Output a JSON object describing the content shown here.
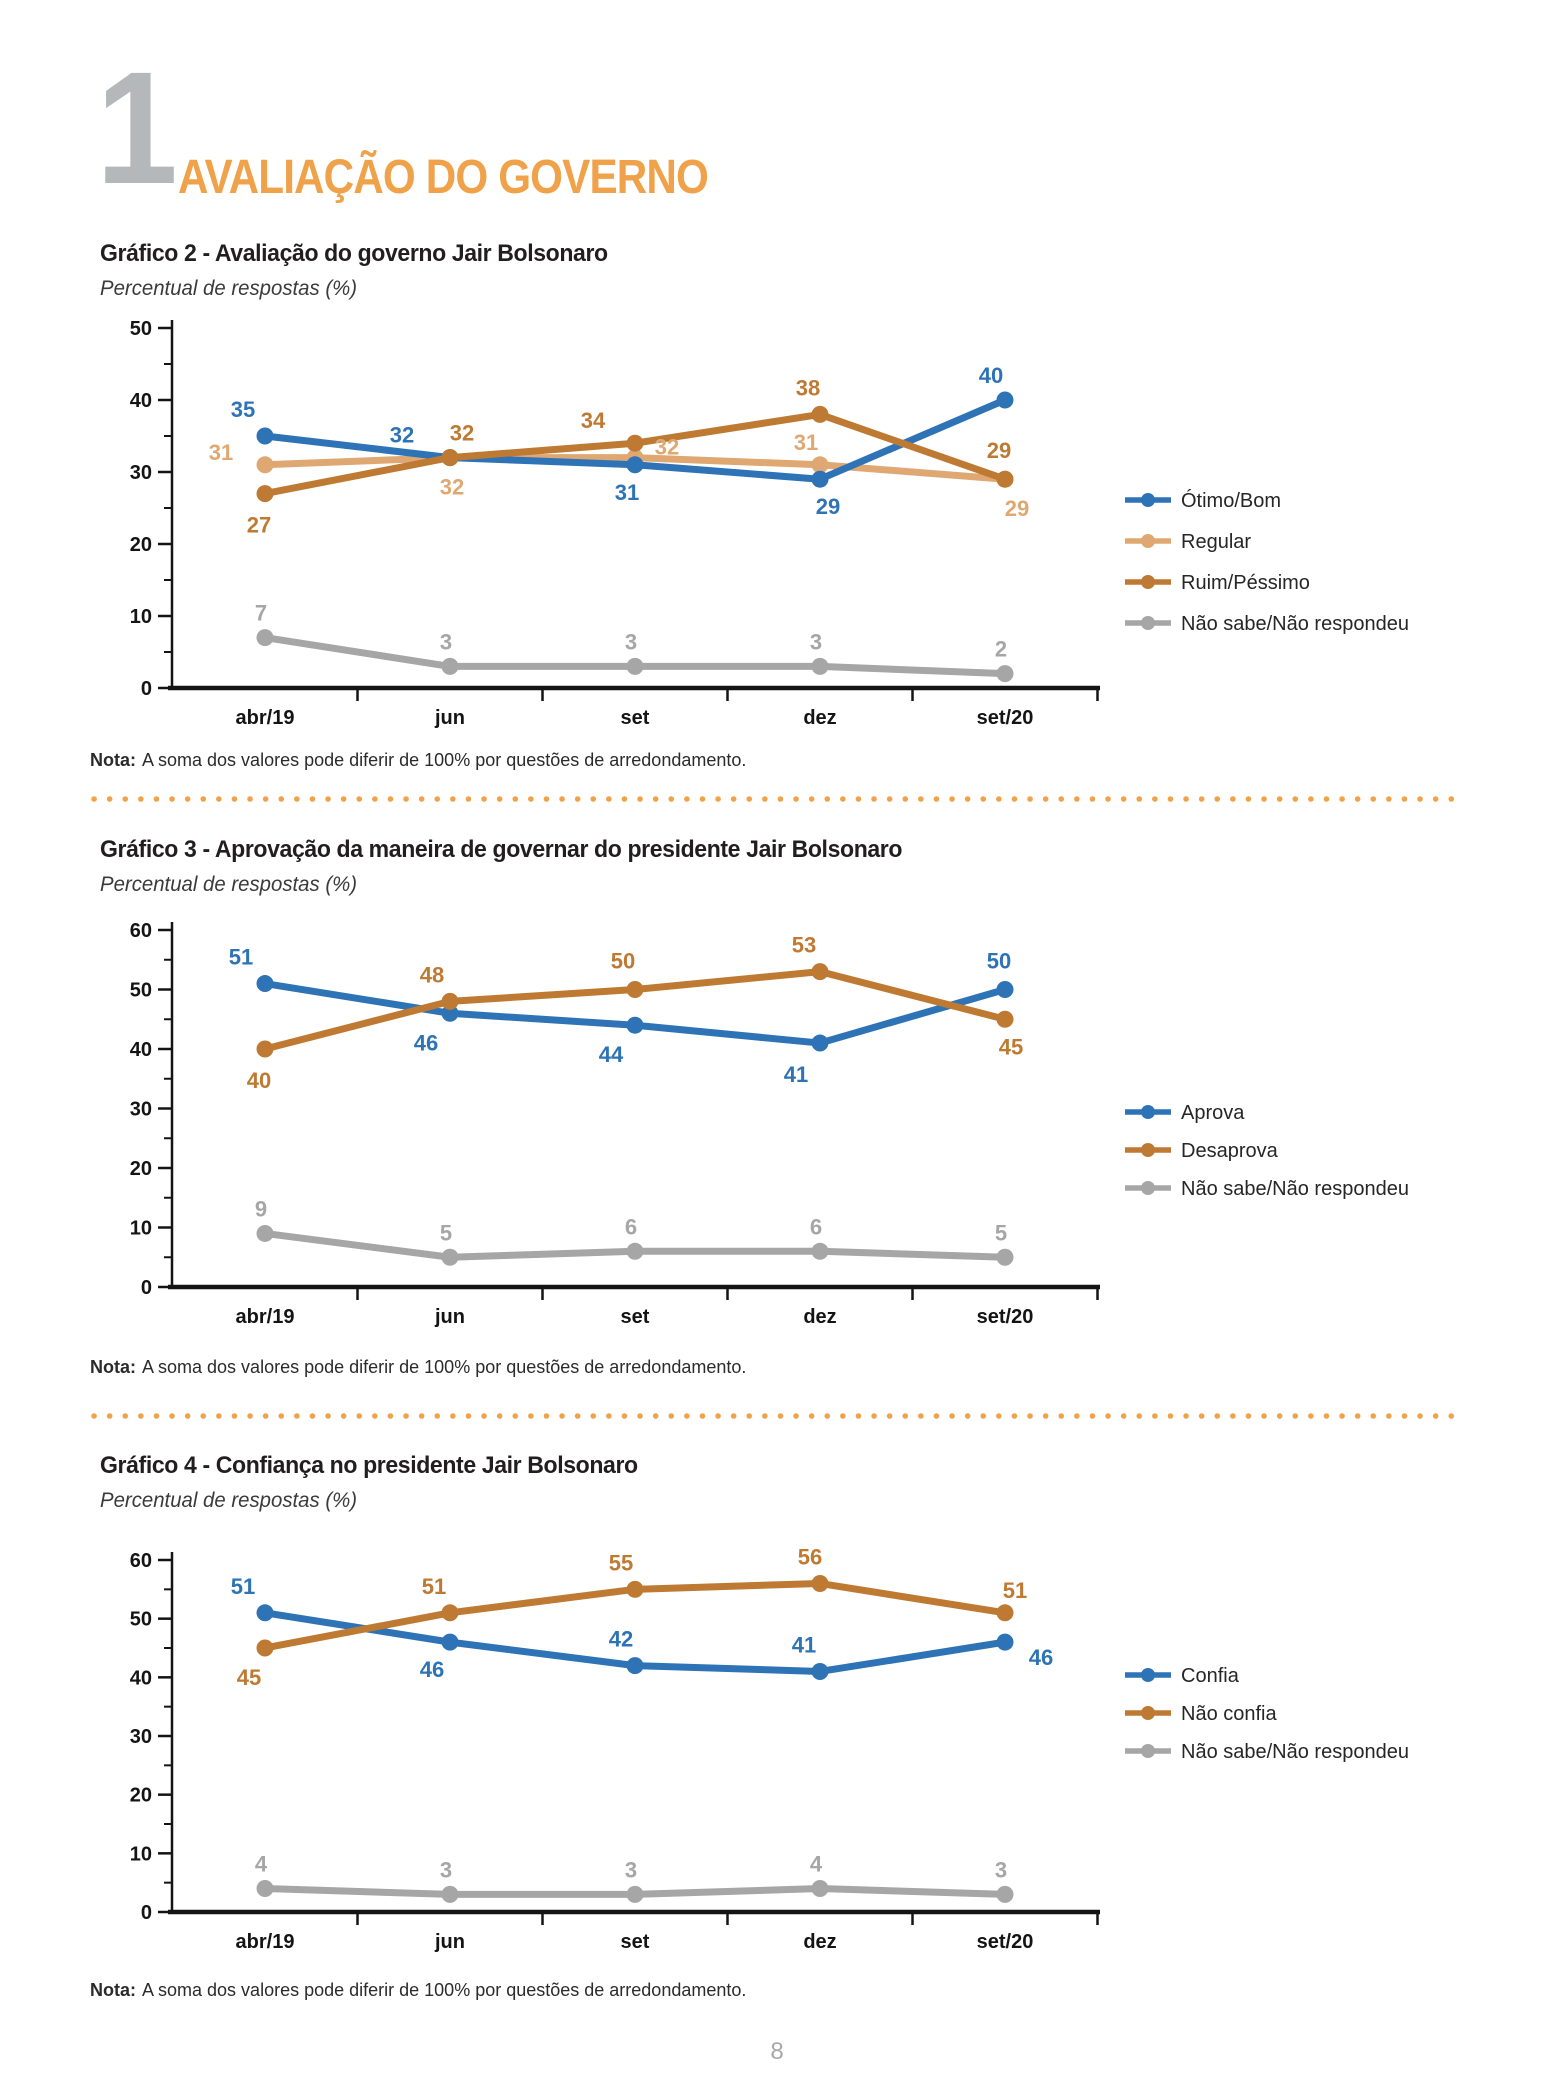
{
  "header": {
    "section_number": "1",
    "section_title": "AVALIAÇÃO DO GOVERNO"
  },
  "page": {
    "number": "8"
  },
  "colors": {
    "accent_orange": "#f0a24a",
    "series_blue": "#2e73b5",
    "series_tan": "#dfa873",
    "series_dark_orange": "#be7a33",
    "series_gray": "#a6a6a6",
    "axis_black": "#141414"
  },
  "chart_data": [
    {
      "type": "line",
      "title": "Gráfico 2 - Avaliação do governo Jair Bolsonaro",
      "subtitle": "Percentual de respostas (%)",
      "categories": [
        "abr/19",
        "jun",
        "set",
        "dez",
        "set/20"
      ],
      "ylim": [
        0,
        50
      ],
      "ytick_step": 10,
      "grid": false,
      "legend_position": "right",
      "series": [
        {
          "name": "Ótimo/Bom",
          "color": "#2e73b5",
          "values": [
            35,
            32,
            31,
            29,
            40
          ],
          "label_offsets": [
            [
              -22,
              -26
            ],
            [
              -48,
              -22
            ],
            [
              -8,
              28
            ],
            [
              8,
              28
            ],
            [
              -14,
              -24
            ]
          ]
        },
        {
          "name": "Regular",
          "color": "#dfa873",
          "values": [
            31,
            32,
            32,
            31,
            29
          ],
          "label_offsets": [
            [
              -44,
              -12
            ],
            [
              2,
              30
            ],
            [
              32,
              -10
            ],
            [
              -14,
              -22
            ],
            [
              12,
              30
            ]
          ]
        },
        {
          "name": "Ruim/Péssimo",
          "color": "#be7a33",
          "values": [
            27,
            32,
            34,
            38,
            29
          ],
          "label_offsets": [
            [
              -6,
              32
            ],
            [
              12,
              -24
            ],
            [
              -42,
              -22
            ],
            [
              -12,
              -26
            ],
            [
              -6,
              -28
            ]
          ]
        },
        {
          "name": "Não sabe/Não respondeu",
          "color": "#a6a6a6",
          "values": [
            7,
            3,
            3,
            3,
            2
          ],
          "label_offsets": [
            [
              -4,
              -24
            ],
            [
              -4,
              -24
            ],
            [
              -4,
              -24
            ],
            [
              -4,
              -24
            ],
            [
              -4,
              -24
            ]
          ]
        }
      ],
      "note_label": "Nota:",
      "note": "A soma dos valores pode diferir de 100% por questões de arredondamento."
    },
    {
      "type": "line",
      "title": "Gráfico 3 - Aprovação da maneira de governar do presidente Jair Bolsonaro",
      "subtitle": "Percentual de respostas (%)",
      "categories": [
        "abr/19",
        "jun",
        "set",
        "dez",
        "set/20"
      ],
      "ylim": [
        0,
        60
      ],
      "ytick_step": 10,
      "grid": false,
      "legend_position": "right",
      "series": [
        {
          "name": "Aprova",
          "color": "#2e73b5",
          "values": [
            51,
            46,
            44,
            41,
            50
          ],
          "label_offsets": [
            [
              -24,
              -26
            ],
            [
              -24,
              30
            ],
            [
              -24,
              30
            ],
            [
              -24,
              32
            ],
            [
              -6,
              -28
            ]
          ]
        },
        {
          "name": "Desaprova",
          "color": "#be7a33",
          "values": [
            40,
            48,
            50,
            53,
            45
          ],
          "label_offsets": [
            [
              -6,
              32
            ],
            [
              -18,
              -26
            ],
            [
              -12,
              -28
            ],
            [
              -16,
              -26
            ],
            [
              6,
              28
            ]
          ]
        },
        {
          "name": "Não sabe/Não respondeu",
          "color": "#a6a6a6",
          "values": [
            9,
            5,
            6,
            6,
            5
          ],
          "label_offsets": [
            [
              -4,
              -24
            ],
            [
              -4,
              -24
            ],
            [
              -4,
              -24
            ],
            [
              -4,
              -24
            ],
            [
              -4,
              -24
            ]
          ]
        }
      ],
      "note_label": "Nota:",
      "note": "A soma dos valores pode diferir de 100% por questões de arredondamento."
    },
    {
      "type": "line",
      "title": "Gráfico 4 - Confiança no presidente Jair Bolsonaro",
      "subtitle": "Percentual de respostas (%)",
      "categories": [
        "abr/19",
        "jun",
        "set",
        "dez",
        "set/20"
      ],
      "ylim": [
        0,
        60
      ],
      "ytick_step": 10,
      "grid": false,
      "legend_position": "right",
      "series": [
        {
          "name": "Confia",
          "color": "#2e73b5",
          "values": [
            51,
            46,
            42,
            41,
            46
          ],
          "label_offsets": [
            [
              -22,
              -26
            ],
            [
              -18,
              28
            ],
            [
              -14,
              -26
            ],
            [
              -16,
              -26
            ],
            [
              36,
              16
            ]
          ]
        },
        {
          "name": "Não confia",
          "color": "#be7a33",
          "values": [
            45,
            51,
            55,
            56,
            51
          ],
          "label_offsets": [
            [
              -16,
              30
            ],
            [
              -16,
              -26
            ],
            [
              -14,
              -26
            ],
            [
              -10,
              -26
            ],
            [
              10,
              -22
            ]
          ]
        },
        {
          "name": "Não sabe/Não respondeu",
          "color": "#a6a6a6",
          "values": [
            4,
            3,
            3,
            4,
            3
          ],
          "label_offsets": [
            [
              -4,
              -24
            ],
            [
              -4,
              -24
            ],
            [
              -4,
              -24
            ],
            [
              -4,
              -24
            ],
            [
              -4,
              -24
            ]
          ]
        }
      ],
      "note_label": "Nota:",
      "note": "A soma dos valores pode diferir de 100% por questões de arredondamento."
    }
  ]
}
